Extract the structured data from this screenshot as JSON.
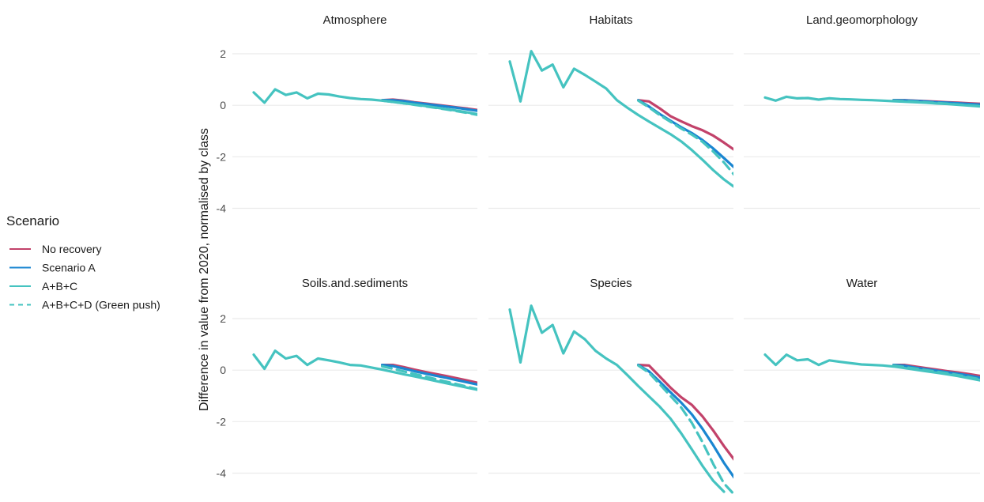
{
  "chart_data": {
    "type": "line",
    "ylabel": "Difference in value from 2020, normalised by class",
    "y_ticks": [
      2,
      0,
      -2,
      -4
    ],
    "ylim": [
      -4.9,
      2.7
    ],
    "x": [
      1,
      2,
      3,
      4,
      5,
      6,
      7,
      8,
      9,
      10,
      11,
      12,
      13,
      14,
      15,
      16,
      17,
      18,
      19,
      20,
      21,
      22,
      23,
      24,
      25,
      26,
      27,
      28,
      29,
      30
    ],
    "legend": {
      "title": "Scenario",
      "position": "left",
      "entries": [
        {
          "label": "No recovery",
          "color": "#c2426a",
          "dash": "solid"
        },
        {
          "label": "Scenario A",
          "color": "#1a86d1",
          "dash": "solid"
        },
        {
          "label": "A+B+C",
          "color": "#45c3c0",
          "dash": "solid"
        },
        {
          "label": "A+B+C+D (Green push)",
          "color": "#45c3c0",
          "dash": "dashed"
        }
      ]
    },
    "panels": [
      {
        "title": "Atmosphere",
        "series": [
          {
            "name": "No recovery",
            "values": [
              null,
              null,
              null,
              null,
              null,
              null,
              null,
              null,
              null,
              null,
              null,
              null,
              0.2,
              0.22,
              0.18,
              0.12,
              0.07,
              0.02,
              -0.03,
              -0.08,
              -0.13,
              -0.19,
              -0.25,
              -0.32,
              -0.38,
              -0.44,
              -0.5,
              -0.56
            ]
          },
          {
            "name": "Scenario A",
            "values": [
              null,
              null,
              null,
              null,
              null,
              null,
              null,
              null,
              null,
              null,
              null,
              null,
              0.2,
              0.2,
              0.16,
              0.1,
              0.05,
              0,
              -0.05,
              -0.1,
              -0.16,
              -0.22,
              -0.29,
              -0.36,
              -0.43,
              -0.5,
              -0.57,
              -0.63
            ]
          },
          {
            "name": "A+B+C",
            "values": [
              0.5,
              0.1,
              0.62,
              0.4,
              0.5,
              0.27,
              0.45,
              0.42,
              0.34,
              0.28,
              0.24,
              0.22,
              0.18,
              0.13,
              0.08,
              0.03,
              -0.03,
              -0.09,
              -0.15,
              -0.21,
              -0.28,
              -0.35,
              -0.43,
              -0.5,
              -0.57,
              -0.63,
              -0.69,
              -0.74
            ]
          },
          {
            "name": "A+B+C+D (Green push)",
            "values": [
              null,
              null,
              null,
              null,
              null,
              null,
              null,
              null,
              null,
              null,
              null,
              null,
              0.18,
              0.13,
              0.08,
              0.02,
              -0.04,
              -0.1,
              -0.16,
              -0.23,
              -0.3,
              -0.38,
              -0.46,
              -0.54,
              -0.62,
              -0.7,
              -0.77,
              -0.83
            ]
          }
        ]
      },
      {
        "title": "Habitats",
        "series": [
          {
            "name": "No recovery",
            "values": [
              null,
              null,
              null,
              null,
              null,
              null,
              null,
              null,
              null,
              null,
              null,
              null,
              0.2,
              0.15,
              -0.12,
              -0.42,
              -0.62,
              -0.81,
              -0.97,
              -1.18,
              -1.45,
              -1.74,
              -2.03,
              -2.3,
              -2.52,
              -2.73
            ]
          },
          {
            "name": "Scenario A",
            "values": [
              null,
              null,
              null,
              null,
              null,
              null,
              null,
              null,
              null,
              null,
              null,
              null,
              0.2,
              -0.05,
              -0.34,
              -0.6,
              -0.85,
              -1.08,
              -1.35,
              -1.68,
              -2.05,
              -2.43,
              -2.78,
              -3.08,
              -3.3
            ]
          },
          {
            "name": "A+B+C",
            "values": [
              1.7,
              0.15,
              2.1,
              1.35,
              1.58,
              0.7,
              1.42,
              1.18,
              0.92,
              0.65,
              0.2,
              -0.1,
              -0.38,
              -0.63,
              -0.88,
              -1.12,
              -1.4,
              -1.74,
              -2.12,
              -2.52,
              -2.88,
              -3.18,
              -3.4
            ]
          },
          {
            "name": "A+B+C+D (Green push)",
            "values": [
              null,
              null,
              null,
              null,
              null,
              null,
              null,
              null,
              null,
              null,
              null,
              null,
              0.18,
              -0.08,
              -0.38,
              -0.64,
              -0.9,
              -1.14,
              -1.42,
              -1.8,
              -2.22,
              -2.72,
              -3.15,
              -3.45,
              -3.62
            ]
          }
        ]
      },
      {
        "title": "Land.geomorphology",
        "series": [
          {
            "name": "No recovery",
            "values": [
              null,
              null,
              null,
              null,
              null,
              null,
              null,
              null,
              null,
              null,
              null,
              null,
              0.2,
              0.2,
              0.18,
              0.16,
              0.14,
              0.12,
              0.1,
              0.08,
              0.06,
              0.04,
              0.01,
              -0.02
            ]
          },
          {
            "name": "Scenario A",
            "values": [
              null,
              null,
              null,
              null,
              null,
              null,
              null,
              null,
              null,
              null,
              null,
              null,
              0.2,
              0.19,
              0.17,
              0.15,
              0.12,
              0.1,
              0.08,
              0.05,
              0.03,
              0,
              -0.03,
              -0.06
            ]
          },
          {
            "name": "A+B+C",
            "values": [
              0.3,
              0.18,
              0.33,
              0.27,
              0.28,
              0.22,
              0.27,
              0.24,
              0.23,
              0.21,
              0.2,
              0.18,
              0.16,
              0.14,
              0.12,
              0.1,
              0.07,
              0.05,
              0.02,
              -0.01,
              -0.04,
              -0.07,
              -0.09,
              -0.1
            ]
          },
          {
            "name": "A+B+C+D (Green push)",
            "values": [
              null,
              null,
              null,
              null,
              null,
              null,
              null,
              null,
              null,
              null,
              null,
              null,
              0.18,
              0.16,
              0.14,
              0.11,
              0.09,
              0.06,
              0.03,
              0,
              -0.03,
              -0.06,
              -0.09,
              -0.12
            ]
          }
        ]
      },
      {
        "title": "Soils.and.sediments",
        "series": [
          {
            "name": "No recovery",
            "values": [
              null,
              null,
              null,
              null,
              null,
              null,
              null,
              null,
              null,
              null,
              null,
              null,
              0.2,
              0.2,
              0.12,
              0.02,
              -0.07,
              -0.15,
              -0.23,
              -0.32,
              -0.41,
              -0.5,
              -0.59,
              -0.67,
              -0.75,
              -0.8
            ]
          },
          {
            "name": "Scenario A",
            "values": [
              null,
              null,
              null,
              null,
              null,
              null,
              null,
              null,
              null,
              null,
              null,
              null,
              0.2,
              0.16,
              0.06,
              -0.04,
              -0.13,
              -0.22,
              -0.3,
              -0.39,
              -0.48,
              -0.57,
              -0.66,
              -0.74,
              -0.81,
              -0.86
            ]
          },
          {
            "name": "A+B+C",
            "values": [
              0.6,
              0.05,
              0.75,
              0.45,
              0.55,
              0.2,
              0.45,
              0.38,
              0.3,
              0.2,
              0.18,
              0.1,
              0.02,
              -0.07,
              -0.16,
              -0.24,
              -0.33,
              -0.42,
              -0.51,
              -0.6,
              -0.69,
              -0.77,
              -0.84,
              -0.88
            ]
          },
          {
            "name": "A+B+C+D (Green push)",
            "values": [
              null,
              null,
              null,
              null,
              null,
              null,
              null,
              null,
              null,
              null,
              null,
              null,
              0.15,
              0.05,
              -0.05,
              -0.15,
              -0.25,
              -0.35,
              -0.45,
              -0.55,
              -0.65,
              -0.75,
              -0.85,
              -0.95,
              -1.02
            ]
          }
        ]
      },
      {
        "title": "Species",
        "series": [
          {
            "name": "No recovery",
            "values": [
              null,
              null,
              null,
              null,
              null,
              null,
              null,
              null,
              null,
              null,
              null,
              null,
              0.2,
              0.18,
              -0.25,
              -0.68,
              -1.05,
              -1.35,
              -1.8,
              -2.35,
              -2.95,
              -3.5,
              -3.92
            ]
          },
          {
            "name": "Scenario A",
            "values": [
              null,
              null,
              null,
              null,
              null,
              null,
              null,
              null,
              null,
              null,
              null,
              null,
              0.2,
              -0.05,
              -0.45,
              -0.86,
              -1.26,
              -1.72,
              -2.28,
              -2.92,
              -3.6,
              -4.2,
              -4.65
            ]
          },
          {
            "name": "A+B+C",
            "values": [
              2.35,
              0.3,
              2.5,
              1.45,
              1.75,
              0.65,
              1.5,
              1.2,
              0.75,
              0.45,
              0.2,
              -0.2,
              -0.62,
              -1.02,
              -1.42,
              -1.88,
              -2.45,
              -3.08,
              -3.72,
              -4.3,
              -4.72
            ]
          },
          {
            "name": "A+B+C+D (Green push)",
            "values": [
              null,
              null,
              null,
              null,
              null,
              null,
              null,
              null,
              null,
              null,
              null,
              null,
              0.18,
              -0.1,
              -0.55,
              -1.0,
              -1.45,
              -2.05,
              -2.8,
              -3.65,
              -4.4,
              -4.85,
              -5.1
            ]
          }
        ]
      },
      {
        "title": "Water",
        "series": [
          {
            "name": "No recovery",
            "values": [
              null,
              null,
              null,
              null,
              null,
              null,
              null,
              null,
              null,
              null,
              null,
              null,
              0.2,
              0.2,
              0.14,
              0.08,
              0.02,
              -0.04,
              -0.09,
              -0.15,
              -0.22,
              -0.3,
              -0.38,
              -0.46,
              -0.52
            ]
          },
          {
            "name": "Scenario A",
            "values": [
              null,
              null,
              null,
              null,
              null,
              null,
              null,
              null,
              null,
              null,
              null,
              null,
              0.2,
              0.17,
              0.1,
              0.04,
              -0.02,
              -0.08,
              -0.14,
              -0.21,
              -0.29,
              -0.37,
              -0.45,
              -0.53,
              -0.59
            ]
          },
          {
            "name": "A+B+C",
            "values": [
              0.6,
              0.2,
              0.6,
              0.38,
              0.42,
              0.2,
              0.38,
              0.32,
              0.27,
              0.22,
              0.2,
              0.18,
              0.14,
              0.08,
              0.02,
              -0.04,
              -0.1,
              -0.16,
              -0.23,
              -0.31,
              -0.39,
              -0.47,
              -0.55,
              -0.61
            ]
          },
          {
            "name": "A+B+C+D (Green push)",
            "values": [
              null,
              null,
              null,
              null,
              null,
              null,
              null,
              null,
              null,
              null,
              null,
              null,
              0.18,
              0.12,
              0.06,
              0,
              -0.06,
              -0.12,
              -0.19,
              -0.27,
              -0.35,
              -0.43,
              -0.52,
              -0.6,
              -0.68
            ]
          }
        ]
      }
    ]
  }
}
